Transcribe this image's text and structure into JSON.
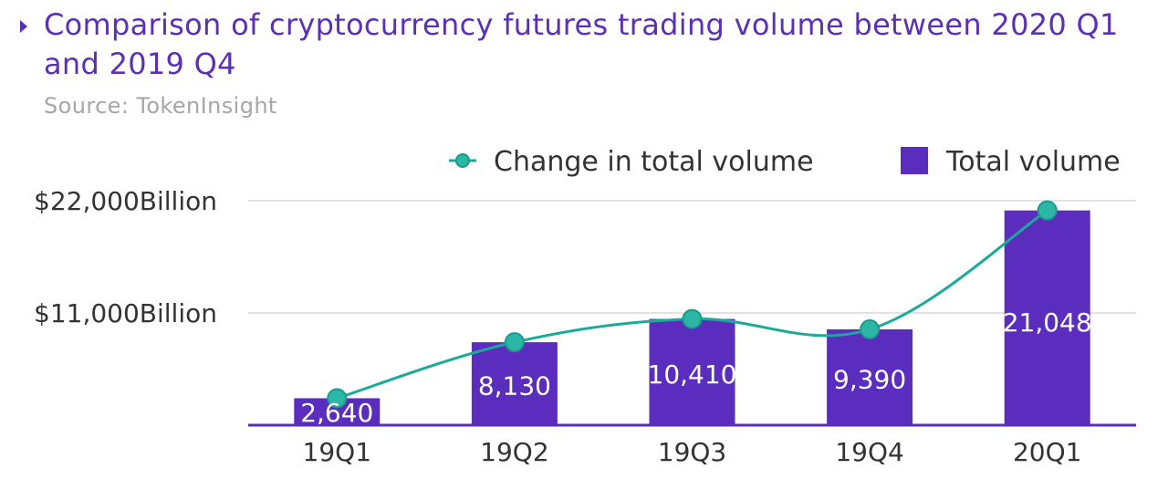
{
  "header": {
    "title": "Comparison of cryptocurrency futures trading volume between 2020 Q1 and 2019 Q4",
    "subtitle": "Source: TokenInsight"
  },
  "chart_data": {
    "type": "bar",
    "categories": [
      "19Q1",
      "19Q2",
      "19Q3",
      "19Q4",
      "20Q1"
    ],
    "series": [
      {
        "name": "Total volume",
        "kind": "bar",
        "values": [
          2640,
          8130,
          10410,
          9390,
          21048
        ],
        "labels": [
          "2,640",
          "8,130",
          "10,410",
          "9,390",
          "21,048"
        ],
        "color": "#5a2dbf"
      },
      {
        "name": "Change in total volume",
        "kind": "line",
        "smooth": true,
        "values": [
          2640,
          8130,
          10410,
          9390,
          21048
        ],
        "color": "#1aaa9a"
      }
    ],
    "y_ticks": [
      {
        "value": 11000,
        "label": "$11,000Billion"
      },
      {
        "value": 22000,
        "label": "$22,000Billion"
      }
    ],
    "ylim": [
      0,
      22000
    ],
    "grid": true,
    "legend_position": "top-right",
    "xlabel": "",
    "ylabel": ""
  }
}
